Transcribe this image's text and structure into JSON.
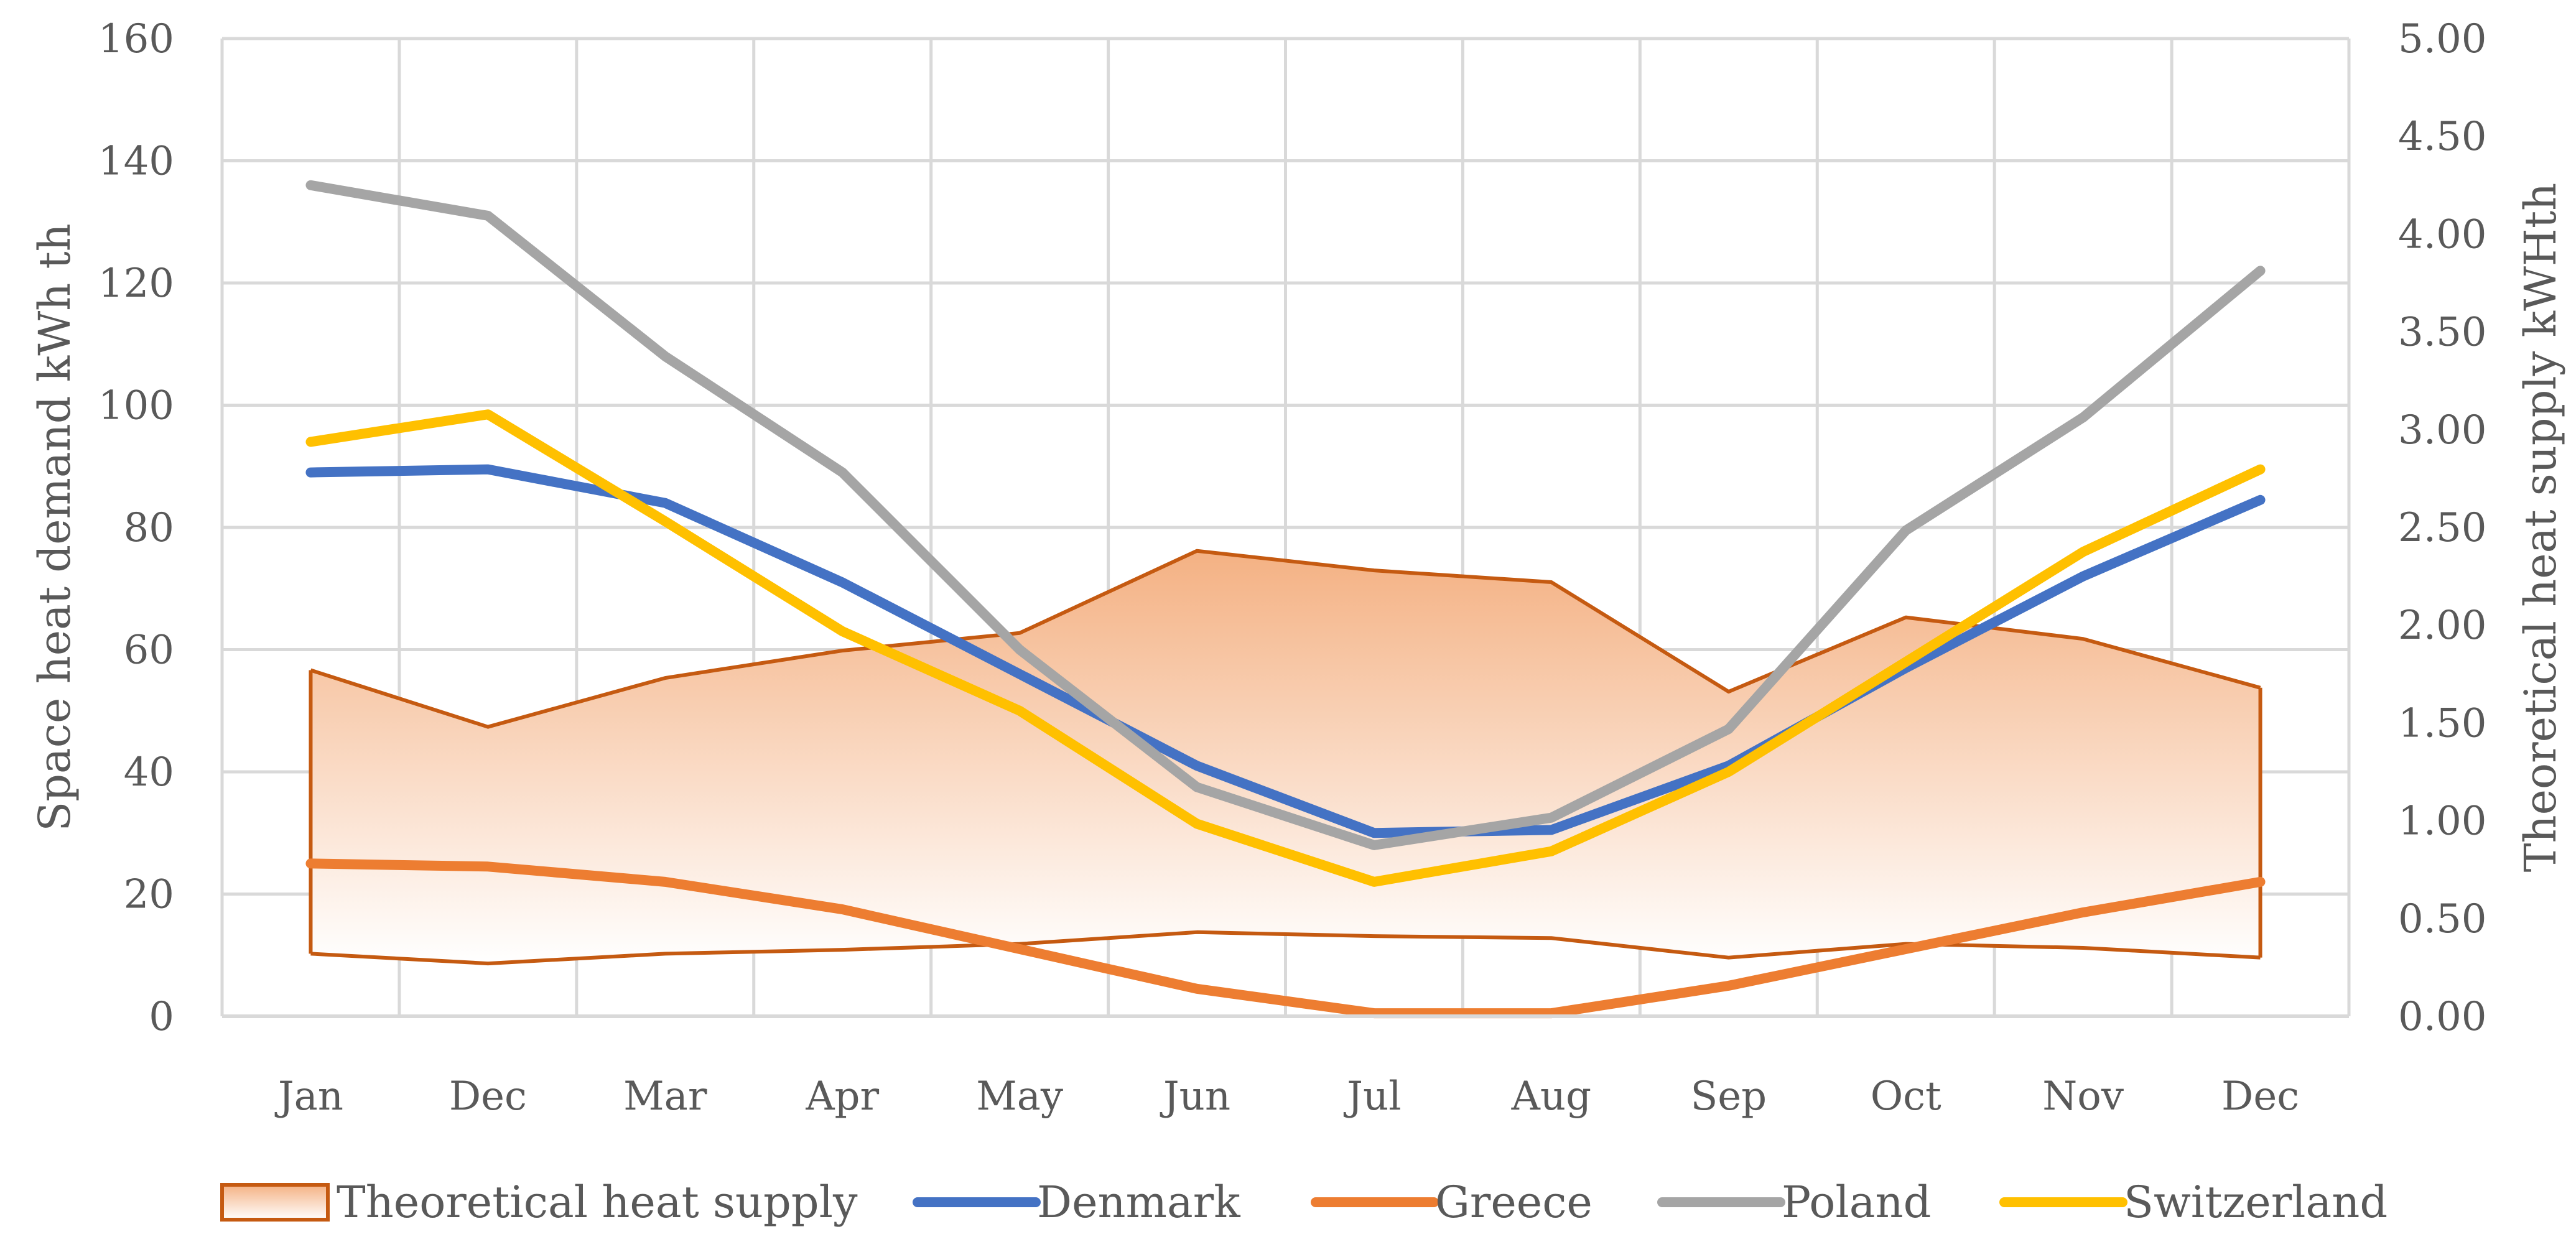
{
  "chart_data": {
    "type": "line",
    "categories": [
      "Jan",
      "Dec",
      "Mar",
      "Apr",
      "May",
      "Jun",
      "Jul",
      "Aug",
      "Sep",
      "Oct",
      "Nov",
      "Dec"
    ],
    "y_left": {
      "label": "Space heat demand kWh th",
      "range": [
        0,
        160
      ],
      "ticks": [
        "0",
        "20",
        "40",
        "60",
        "80",
        "100",
        "120",
        "140",
        "160"
      ]
    },
    "y_right": {
      "label": "Theoretical heat supply kWHth",
      "range": [
        0,
        5
      ],
      "ticks": [
        "0.00",
        "0.50",
        "1.00",
        "1.50",
        "2.00",
        "2.50",
        "3.00",
        "3.50",
        "4.00",
        "4.50",
        "5.00"
      ]
    },
    "grid": true,
    "legend_position": "bottom",
    "band": {
      "name": "Theoretical heat supply",
      "axis": "right",
      "upper": [
        1.77,
        1.48,
        1.73,
        1.87,
        1.96,
        2.38,
        2.28,
        2.22,
        1.66,
        2.04,
        1.93,
        1.68
      ],
      "lower": [
        0.32,
        0.27,
        0.32,
        0.34,
        0.37,
        0.43,
        0.41,
        0.4,
        0.3,
        0.37,
        0.35,
        0.3
      ],
      "stroke": "#C55A11",
      "fill_top": "#F4B183",
      "fill_bottom": "#FFFFFF"
    },
    "series": [
      {
        "name": "Denmark",
        "axis": "left",
        "color": "#4472C4",
        "values": [
          89,
          89.5,
          84,
          71,
          56,
          41,
          30,
          30.5,
          41,
          57,
          72,
          84.5
        ]
      },
      {
        "name": "Greece",
        "axis": "left",
        "color": "#ED7D31",
        "values": [
          25,
          24.5,
          22,
          17.5,
          11,
          4.5,
          0.5,
          0.5,
          5,
          11,
          17,
          22
        ]
      },
      {
        "name": "Poland",
        "axis": "left",
        "color": "#A5A5A5",
        "values": [
          136,
          131,
          108,
          89,
          60,
          37.5,
          28,
          32.5,
          47,
          79.5,
          98,
          122
        ]
      },
      {
        "name": "Switzerland",
        "axis": "left",
        "color": "#FFC000",
        "values": [
          94,
          98.5,
          81,
          63,
          50,
          31.5,
          22,
          27,
          40,
          58,
          76,
          89.5
        ]
      }
    ]
  }
}
